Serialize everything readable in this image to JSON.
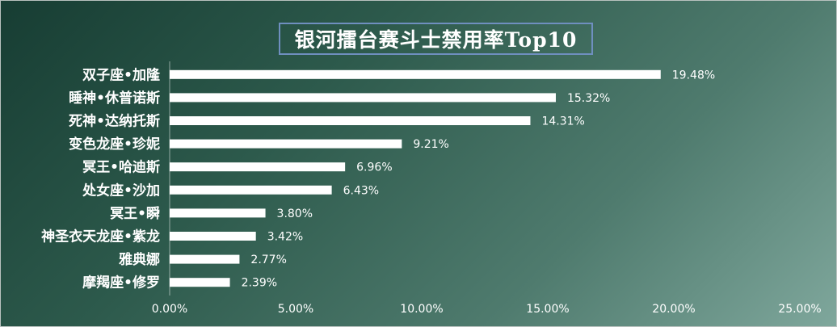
{
  "chart_data": {
    "type": "bar",
    "orientation": "horizontal",
    "title": "银河擂台赛斗士禁用率Top10",
    "categories": [
      "双子座•加隆",
      "睡神•休普诺斯",
      "死神•达纳托斯",
      "变色龙座•珍妮",
      "冥王•哈迪斯",
      "处女座•沙加",
      "冥王•瞬",
      "神圣衣天龙座•紫龙",
      "雅典娜",
      "摩羯座•修罗"
    ],
    "values": [
      19.48,
      15.32,
      14.31,
      9.21,
      6.96,
      6.43,
      3.8,
      3.42,
      2.77,
      2.39
    ],
    "value_labels": [
      "19.48%",
      "15.32%",
      "14.31%",
      "9.21%",
      "6.96%",
      "6.43%",
      "3.80%",
      "3.42%",
      "2.77%",
      "2.39%"
    ],
    "xticks": [
      "0.00%",
      "5.00%",
      "10.00%",
      "15.00%",
      "20.00%",
      "25.00%"
    ],
    "xlim": [
      0,
      25
    ],
    "grid": false,
    "legend": "none",
    "colors": {
      "bar": "#ffffff",
      "text": "#ffffff",
      "background_start": "#173d33",
      "background_end": "#7fa79c",
      "title_border": "#6f8fbf"
    }
  }
}
